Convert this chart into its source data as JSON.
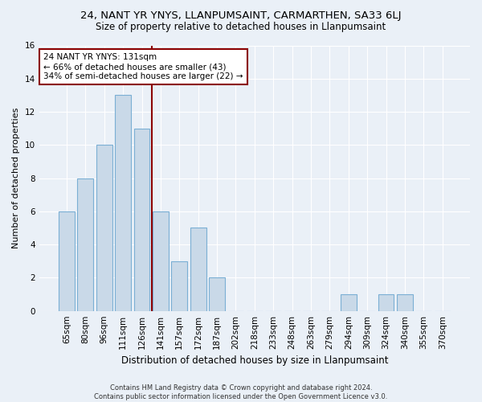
{
  "title": "24, NANT YR YNYS, LLANPUMSAINT, CARMARTHEN, SA33 6LJ",
  "subtitle": "Size of property relative to detached houses in Llanpumsaint",
  "xlabel": "Distribution of detached houses by size in Llanpumsaint",
  "ylabel": "Number of detached properties",
  "categories": [
    "65sqm",
    "80sqm",
    "96sqm",
    "111sqm",
    "126sqm",
    "141sqm",
    "157sqm",
    "172sqm",
    "187sqm",
    "202sqm",
    "218sqm",
    "233sqm",
    "248sqm",
    "263sqm",
    "279sqm",
    "294sqm",
    "309sqm",
    "324sqm",
    "340sqm",
    "355sqm",
    "370sqm"
  ],
  "values": [
    6,
    8,
    10,
    13,
    11,
    6,
    3,
    5,
    2,
    0,
    0,
    0,
    0,
    0,
    0,
    1,
    0,
    1,
    1,
    0,
    0
  ],
  "bar_color": "#c9d9e8",
  "bar_edge_color": "#7bafd4",
  "vline_x": 4.55,
  "vline_color": "#8b0000",
  "annotation_text": "24 NANT YR YNYS: 131sqm\n← 66% of detached houses are smaller (43)\n34% of semi-detached houses are larger (22) →",
  "annotation_box_color": "#ffffff",
  "annotation_box_edge_color": "#8b0000",
  "ylim": [
    0,
    16
  ],
  "yticks": [
    0,
    2,
    4,
    6,
    8,
    10,
    12,
    14,
    16
  ],
  "footer": "Contains HM Land Registry data © Crown copyright and database right 2024.\nContains public sector information licensed under the Open Government Licence v3.0.",
  "background_color": "#eaf0f7",
  "grid_color": "#ffffff",
  "title_fontsize": 9.5,
  "subtitle_fontsize": 8.5,
  "xlabel_fontsize": 8.5,
  "ylabel_fontsize": 8,
  "tick_fontsize": 7.5,
  "annotation_fontsize": 7.5,
  "footer_fontsize": 6
}
